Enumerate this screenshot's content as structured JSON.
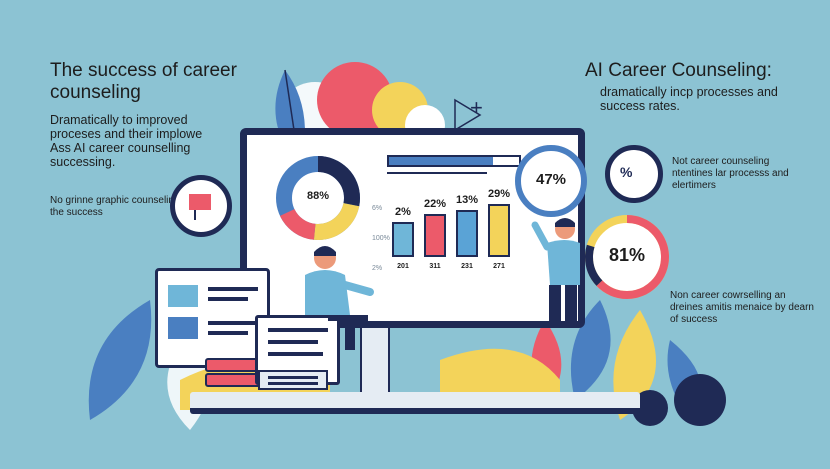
{
  "left_panel": {
    "title": "The success of career counseling",
    "body": "Dramatically to improved proceses and their implowe Ass AI career counselling successing.",
    "note": "No grinne graphic counseling the success"
  },
  "right_panel": {
    "title": "AI Career Counseling:",
    "subtitle": "dramatically incp processes and success rates.",
    "note1": "Not career counseling ntentines lar processs and elertimers",
    "note2": "Non career cowrselling an dreines amitis menaice by dearn of success"
  },
  "monitor": {
    "donut_label": "88%",
    "ticks": [
      "6%",
      "100%",
      "2%"
    ],
    "bars": [
      {
        "label": "2%",
        "x_label": "201",
        "value": 0.58,
        "color": "#6fb6d8"
      },
      {
        "label": "22%",
        "x_label": "311",
        "value": 0.72,
        "color": "#ec5a6a"
      },
      {
        "label": "13%",
        "x_label": "231",
        "value": 0.78,
        "color": "#5aa3d6"
      },
      {
        "label": "29%",
        "x_label": "271",
        "value": 0.88,
        "color": "#f3d35a"
      }
    ]
  },
  "circles": {
    "top": "47%",
    "big": "81%",
    "small": "%"
  },
  "decor": {
    "plus_sign": "+"
  },
  "colors": {
    "background": "#8cc3d3",
    "navy": "#1f2a55",
    "red": "#ec5a6a",
    "yellow": "#f3d35a",
    "blue": "#4a7fc1",
    "light_blue": "#6fb6d8"
  }
}
